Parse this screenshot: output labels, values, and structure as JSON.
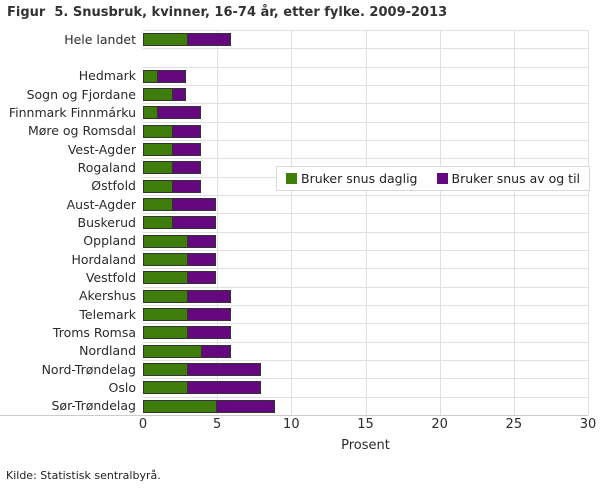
{
  "title": "Figur  5. Snusbruk, kvinner, 16-74 år, etter fylke. 2009-2013",
  "source": "Kilde: Statistisk sentralbyrå.",
  "chart_data": {
    "type": "bar",
    "orientation": "horizontal",
    "stacked": true,
    "title": "Figur  5. Snusbruk, kvinner, 16-74 år, etter fylke. 2009-2013",
    "xlabel": "Prosent",
    "ylabel": "",
    "xlim": [
      0,
      30
    ],
    "xticks": [
      0,
      5,
      10,
      15,
      20,
      25,
      30
    ],
    "grid": "on",
    "legend_position": "inside-right",
    "gap_after_index": 0,
    "categories": [
      "Hele landet",
      "Hedmark",
      "Sogn og Fjordane",
      "Finnmark Finnmárku",
      "Møre og Romsdal",
      "Vest-Agder",
      "Rogaland",
      "Østfold",
      "Aust-Agder",
      "Buskerud",
      "Oppland",
      "Hordaland",
      "Vestfold",
      "Akershus",
      "Telemark",
      "Troms Romsa",
      "Nordland",
      "Nord-Trøndelag",
      "Oslo",
      "Sør-Trøndelag"
    ],
    "series": [
      {
        "name": "Bruker snus daglig",
        "color": "#3E7D0A",
        "values": [
          3,
          1,
          2,
          1,
          2,
          2,
          2,
          2,
          2,
          2,
          3,
          3,
          3,
          3,
          3,
          3,
          4,
          3,
          3,
          5
        ]
      },
      {
        "name": "Bruker snus av og til",
        "color": "#65087F",
        "values": [
          3,
          2,
          1,
          3,
          2,
          2,
          2,
          2,
          3,
          3,
          2,
          2,
          2,
          3,
          3,
          3,
          2,
          5,
          5,
          4
        ]
      }
    ]
  }
}
